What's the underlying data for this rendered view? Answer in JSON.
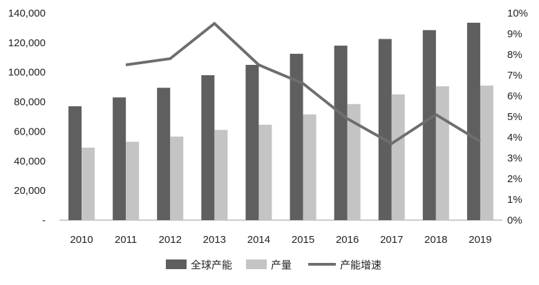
{
  "chart_data": {
    "type": "bar",
    "categories": [
      "2010",
      "2011",
      "2012",
      "2013",
      "2014",
      "2015",
      "2016",
      "2017",
      "2018",
      "2019"
    ],
    "series": [
      {
        "name": "全球产能",
        "type": "bar",
        "axis": "left",
        "color": "#5f5f5f",
        "values": [
          77000,
          83000,
          89500,
          98000,
          105000,
          112500,
          118000,
          122500,
          128500,
          133500
        ]
      },
      {
        "name": "产量",
        "type": "bar",
        "axis": "left",
        "color": "#c4c4c4",
        "values": [
          49000,
          53000,
          56500,
          61000,
          64500,
          71500,
          78500,
          85000,
          90500,
          91000
        ]
      },
      {
        "name": "产能增速",
        "type": "line",
        "axis": "right",
        "color": "#6e6e6e",
        "values": [
          null,
          7.5,
          7.8,
          9.5,
          7.5,
          6.6,
          4.9,
          3.7,
          5.1,
          3.8
        ]
      }
    ],
    "y_left": {
      "ylim": [
        0,
        140000
      ],
      "ticks": [
        0,
        20000,
        40000,
        60000,
        80000,
        100000,
        120000,
        140000
      ],
      "tick_labels": [
        "-",
        "20,000",
        "40,000",
        "60,000",
        "80,000",
        "100,000",
        "120,000",
        "140,000"
      ]
    },
    "y_right": {
      "ylim": [
        0,
        10
      ],
      "ticks": [
        0,
        1,
        2,
        3,
        4,
        5,
        6,
        7,
        8,
        9,
        10
      ],
      "tick_labels": [
        "0%",
        "1%",
        "2%",
        "3%",
        "4%",
        "5%",
        "6%",
        "7%",
        "8%",
        "9%",
        "10%"
      ]
    },
    "grid": false,
    "legend_position": "bottom"
  }
}
